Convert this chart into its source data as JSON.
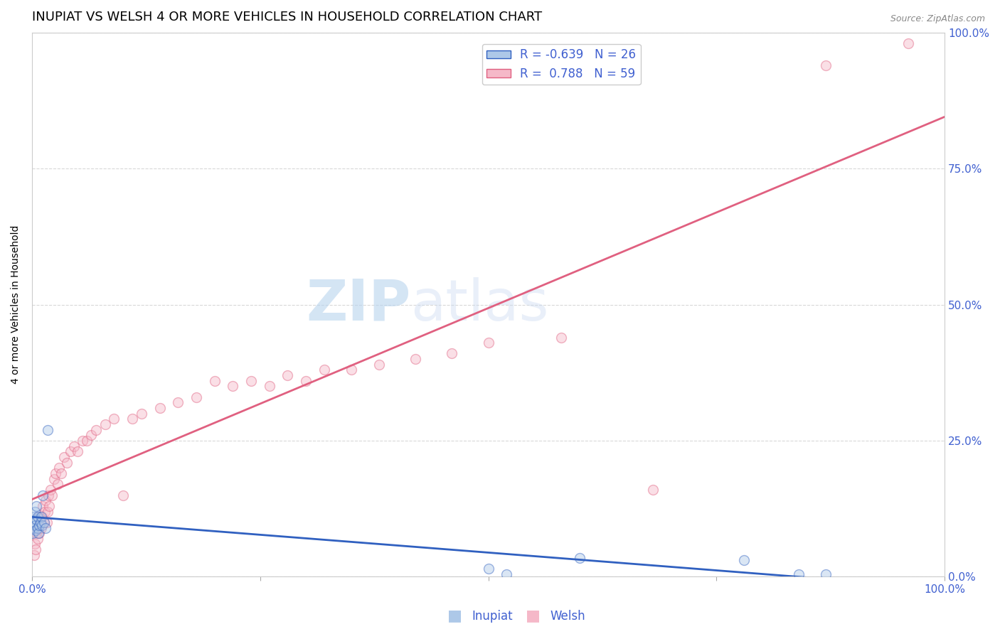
{
  "title": "INUPIAT VS WELSH 4 OR MORE VEHICLES IN HOUSEHOLD CORRELATION CHART",
  "source": "Source: ZipAtlas.com",
  "ylabel": "4 or more Vehicles in Household",
  "watermark_zip": "ZIP",
  "watermark_atlas": "atlas",
  "inupiat_R": -0.639,
  "inupiat_N": 26,
  "welsh_R": 0.788,
  "welsh_N": 59,
  "inupiat_color": "#adc8e8",
  "welsh_color": "#f5b8c8",
  "inupiat_line_color": "#3060c0",
  "welsh_line_color": "#e06080",
  "legend_label_1": "Inupiat",
  "legend_label_2": "Welsh",
  "inupiat_x": [
    0.001,
    0.002,
    0.002,
    0.003,
    0.003,
    0.004,
    0.004,
    0.005,
    0.005,
    0.006,
    0.006,
    0.007,
    0.008,
    0.009,
    0.01,
    0.011,
    0.012,
    0.013,
    0.015,
    0.017,
    0.5,
    0.52,
    0.6,
    0.78,
    0.84,
    0.87
  ],
  "inupiat_y": [
    0.08,
    0.11,
    0.09,
    0.1,
    0.12,
    0.095,
    0.085,
    0.105,
    0.13,
    0.11,
    0.09,
    0.08,
    0.095,
    0.1,
    0.11,
    0.095,
    0.15,
    0.1,
    0.09,
    0.27,
    0.015,
    0.005,
    0.035,
    0.03,
    0.005,
    0.005
  ],
  "welsh_x": [
    0.002,
    0.003,
    0.004,
    0.005,
    0.006,
    0.007,
    0.007,
    0.008,
    0.009,
    0.01,
    0.011,
    0.012,
    0.013,
    0.014,
    0.015,
    0.016,
    0.017,
    0.018,
    0.019,
    0.02,
    0.022,
    0.024,
    0.026,
    0.028,
    0.03,
    0.032,
    0.035,
    0.038,
    0.042,
    0.046,
    0.05,
    0.055,
    0.06,
    0.065,
    0.07,
    0.08,
    0.09,
    0.1,
    0.11,
    0.12,
    0.14,
    0.16,
    0.18,
    0.2,
    0.22,
    0.24,
    0.26,
    0.28,
    0.3,
    0.32,
    0.35,
    0.38,
    0.42,
    0.46,
    0.5,
    0.58,
    0.68,
    0.87,
    0.96
  ],
  "welsh_y": [
    0.04,
    0.06,
    0.05,
    0.08,
    0.07,
    0.09,
    0.11,
    0.08,
    0.1,
    0.09,
    0.11,
    0.13,
    0.1,
    0.12,
    0.14,
    0.1,
    0.12,
    0.15,
    0.13,
    0.16,
    0.15,
    0.18,
    0.19,
    0.17,
    0.2,
    0.19,
    0.22,
    0.21,
    0.23,
    0.24,
    0.23,
    0.25,
    0.25,
    0.26,
    0.27,
    0.28,
    0.29,
    0.15,
    0.29,
    0.3,
    0.31,
    0.32,
    0.33,
    0.36,
    0.35,
    0.36,
    0.35,
    0.37,
    0.36,
    0.38,
    0.38,
    0.39,
    0.4,
    0.41,
    0.43,
    0.44,
    0.16,
    0.94,
    0.98
  ],
  "xlim": [
    0.0,
    1.0
  ],
  "ylim": [
    0.0,
    1.0
  ],
  "xticks": [
    0.0,
    0.25,
    0.5,
    0.75,
    1.0
  ],
  "yticks": [
    0.0,
    0.25,
    0.5,
    0.75,
    1.0
  ],
  "xticklabels_show": [
    "0.0%",
    "100.0%"
  ],
  "xticklabels_pos": [
    0.0,
    1.0
  ],
  "yticklabels": [
    "0.0%",
    "25.0%",
    "50.0%",
    "75.0%",
    "100.0%"
  ],
  "background_color": "#ffffff",
  "grid_color": "#d8d8d8",
  "tick_color": "#4060d0",
  "title_fontsize": 13,
  "axis_label_fontsize": 10,
  "tick_fontsize": 11,
  "marker_size": 100,
  "marker_alpha": 0.45,
  "line_width": 2.0
}
